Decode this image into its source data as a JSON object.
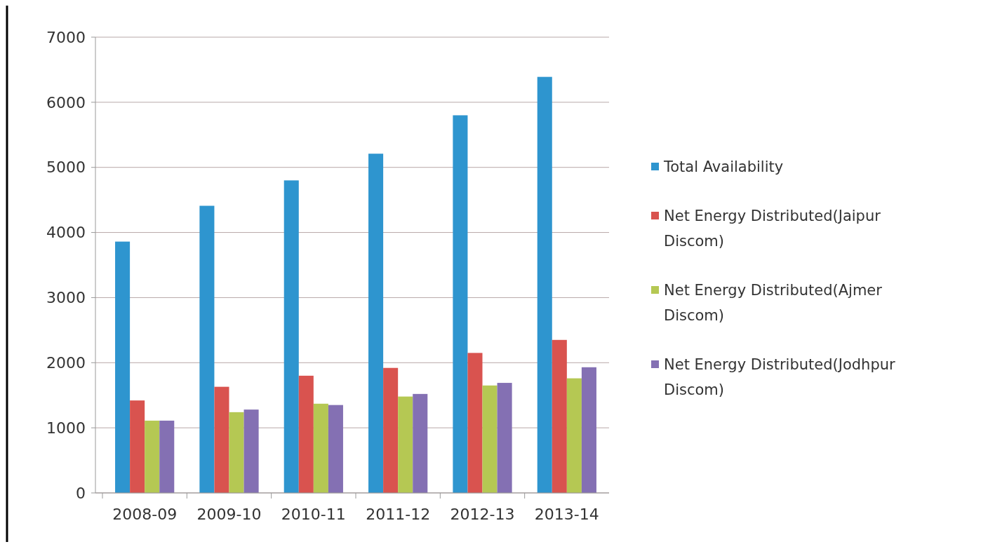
{
  "chart_data": {
    "type": "bar",
    "categories": [
      "2008-09",
      "2009-10",
      "2010-11",
      "2011-12",
      "2012-13",
      "2013-14"
    ],
    "series": [
      {
        "name": "Total Availability",
        "color": "#2e95cf",
        "values": [
          3860,
          4410,
          4800,
          5210,
          5800,
          6390
        ]
      },
      {
        "name": "Net Energy Distributed(Jaipur Discom)",
        "color": "#d9534f",
        "values": [
          1420,
          1630,
          1800,
          1920,
          2150,
          2350
        ]
      },
      {
        "name": "Net Energy Distributed(Ajmer Discom)",
        "color": "#b5c853",
        "values": [
          1110,
          1240,
          1370,
          1480,
          1650,
          1760
        ]
      },
      {
        "name": "Net Energy Distributed(Jodhpur Discom)",
        "color": "#8470b3",
        "values": [
          1110,
          1280,
          1350,
          1520,
          1690,
          1930
        ]
      }
    ],
    "ylim": [
      0,
      7000
    ],
    "yticks": [
      0,
      1000,
      2000,
      3000,
      4000,
      5000,
      6000,
      7000
    ],
    "grid": "y",
    "legend": "right"
  }
}
